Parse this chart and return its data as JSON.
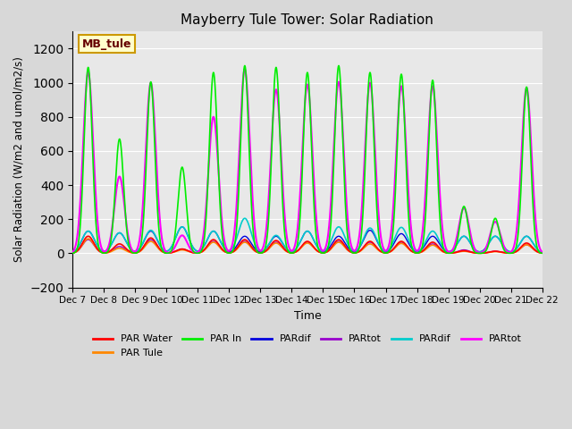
{
  "title": "Mayberry Tule Tower: Solar Radiation",
  "xlabel": "Time",
  "ylabel": "Solar Radiation (W/m2 and umol/m2/s)",
  "ylim": [
    -200,
    1300
  ],
  "yticks": [
    -200,
    0,
    200,
    400,
    600,
    800,
    1000,
    1200
  ],
  "xlim_days": [
    7,
    22
  ],
  "xtick_labels": [
    "Dec 7",
    "Dec 8",
    "Dec 9",
    "Dec 10",
    "Dec 11",
    "Dec 12",
    "Dec 13",
    "Dec 14",
    "Dec 15",
    "Dec 16",
    "Dec 17",
    "Dec 18",
    "Dec 19",
    "Dec 20",
    "Dec 21",
    "Dec 22"
  ],
  "annotation_text": "MB_tule",
  "plot_bg_color": "#e8e8e8",
  "fig_bg_color": "#d8d8d8",
  "legend_labels": [
    "PAR Water",
    "PAR Tule",
    "PAR In",
    "PARdif",
    "PARtot",
    "PARdif",
    "PARtot"
  ],
  "legend_colors": [
    "#ff0000",
    "#ff8800",
    "#00ee00",
    "#0000dd",
    "#9900cc",
    "#00cccc",
    "#ff00ff"
  ],
  "day_centers": [
    7.5,
    8.5,
    9.5,
    10.5,
    11.5,
    12.5,
    13.5,
    14.5,
    15.5,
    16.5,
    17.5,
    18.5,
    19.5,
    20.5,
    21.5
  ],
  "par_in_peaks": [
    1090,
    670,
    1005,
    505,
    1060,
    1100,
    1090,
    1060,
    1100,
    1060,
    1050,
    1015,
    275,
    205,
    975
  ],
  "par_magenta_peaks": [
    1060,
    450,
    1000,
    105,
    800,
    1080,
    960,
    990,
    1005,
    1000,
    980,
    980,
    265,
    185,
    970
  ],
  "par_water_peaks": [
    100,
    55,
    90,
    25,
    80,
    80,
    75,
    70,
    80,
    70,
    70,
    65,
    15,
    12,
    60
  ],
  "par_tule_peaks": [
    85,
    30,
    70,
    20,
    65,
    65,
    60,
    60,
    65,
    55,
    58,
    48,
    12,
    10,
    50
  ],
  "par_dif_blue_peaks": [
    130,
    120,
    130,
    155,
    130,
    100,
    100,
    130,
    100,
    135,
    115,
    100,
    100,
    100,
    100
  ],
  "par_tot_purple_peaks": [
    80,
    40,
    80,
    25,
    70,
    70,
    65,
    65,
    70,
    65,
    65,
    55,
    20,
    12,
    50
  ],
  "par_dif_cyan_peaks": [
    130,
    120,
    135,
    155,
    130,
    205,
    105,
    130,
    155,
    148,
    152,
    130,
    100,
    100,
    100
  ],
  "spike_widths": {
    "par_in": 0.13,
    "par_magenta": 0.16,
    "par_water": 0.18,
    "par_tule": 0.18,
    "par_dif_blue": 0.2,
    "par_tot_purple": 0.18,
    "par_dif_cyan": 0.2
  }
}
